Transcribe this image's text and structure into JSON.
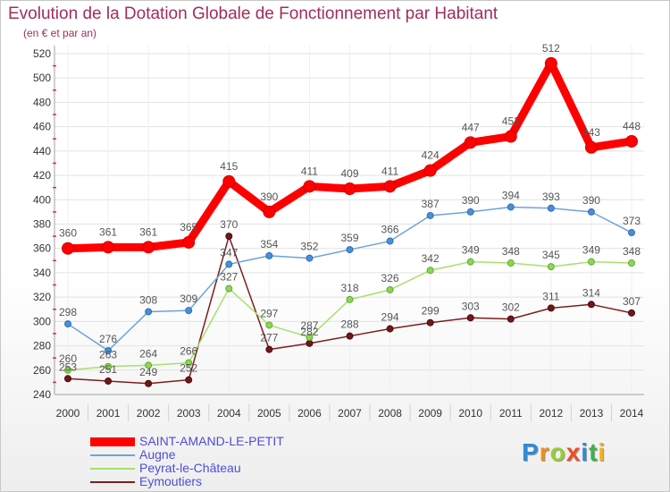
{
  "chart_data": {
    "type": "line",
    "title": "Evolution de la Dotation Globale de Fonctionnement par Habitant",
    "subtitle": "(en € et par an)",
    "xlabel": "",
    "ylabel": "",
    "x": [
      2000,
      2001,
      2002,
      2003,
      2004,
      2005,
      2006,
      2007,
      2008,
      2009,
      2010,
      2011,
      2012,
      2013,
      2014
    ],
    "ylim": [
      240,
      520
    ],
    "yticks": [
      240,
      260,
      280,
      300,
      320,
      340,
      360,
      380,
      400,
      420,
      440,
      460,
      480,
      500,
      520
    ],
    "grid": true,
    "legend_position": "bottom-left",
    "series": [
      {
        "name": "SAINT-AMAND-LE-PETIT",
        "color": "#ff0000",
        "point_color": "#ff0000",
        "values": [
          360,
          361,
          361,
          365,
          415,
          390,
          411,
          409,
          411,
          424,
          447,
          452,
          512,
          443,
          448
        ]
      },
      {
        "name": "Augne",
        "color": "#6ea3d9",
        "point_color": "#4a8fd8",
        "values": [
          298,
          276,
          308,
          309,
          347,
          354,
          352,
          359,
          366,
          387,
          390,
          394,
          393,
          390,
          373
        ]
      },
      {
        "name": "Peyrat-le-Château",
        "color": "#a8e06c",
        "point_color": "#8fd650",
        "values": [
          260,
          263,
          264,
          266,
          327,
          297,
          287,
          318,
          326,
          342,
          349,
          348,
          345,
          349,
          348
        ]
      },
      {
        "name": "Eymoutiers",
        "color": "#7d1e1e",
        "point_color": "#701818",
        "values": [
          253,
          251,
          249,
          252,
          370,
          277,
          282,
          288,
          294,
          299,
          303,
          302,
          311,
          314,
          307
        ]
      }
    ]
  },
  "logo": {
    "letters": [
      "P",
      "r",
      "o",
      "x",
      "i",
      "t",
      "i"
    ],
    "colors": [
      "#2f8ad8",
      "#f28c1e",
      "#9acd32",
      "#f04e23",
      "#2f8ad8",
      "#3cb44b",
      "#f2b01e"
    ]
  }
}
